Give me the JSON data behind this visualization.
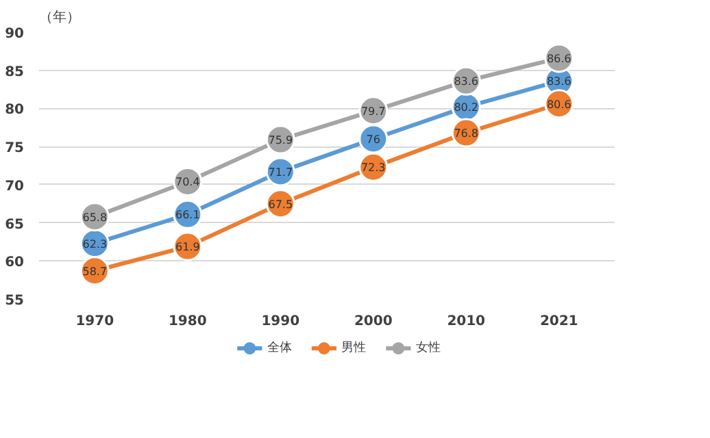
{
  "chart_data": {
    "type": "line",
    "ylabel": "（年）",
    "categories": [
      "1970",
      "1980",
      "1990",
      "2000",
      "2010",
      "2021"
    ],
    "series": [
      {
        "name": "全体",
        "color": "#5b9bd5",
        "values": [
          62.3,
          66.1,
          71.7,
          76,
          80.2,
          83.6
        ]
      },
      {
        "name": "男性",
        "color": "#ed7d31",
        "values": [
          58.7,
          61.9,
          67.5,
          72.3,
          76.8,
          80.6
        ]
      },
      {
        "name": "女性",
        "color": "#a5a5a5",
        "values": [
          65.8,
          70.4,
          75.9,
          79.7,
          83.6,
          86.6
        ]
      }
    ],
    "ylim": [
      55,
      90
    ],
    "yticks": [
      55,
      60,
      65,
      70,
      75,
      80,
      85,
      90
    ],
    "grid": "y",
    "legend": "bottom",
    "marker": "circle",
    "line_style": "solid",
    "data_labels": true
  }
}
